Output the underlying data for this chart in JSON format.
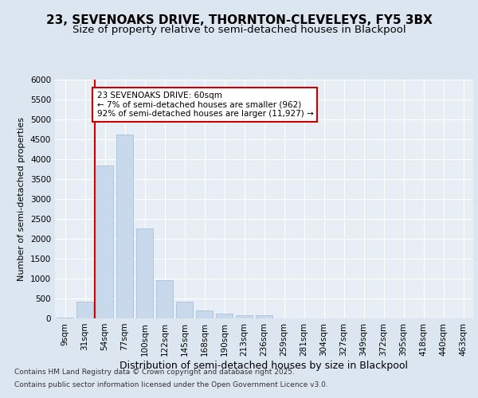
{
  "title": "23, SEVENOAKS DRIVE, THORNTON-CLEVELEYS, FY5 3BX",
  "subtitle": "Size of property relative to semi-detached houses in Blackpool",
  "xlabel": "Distribution of semi-detached houses by size in Blackpool",
  "ylabel": "Number of semi-detached properties",
  "categories": [
    "9sqm",
    "31sqm",
    "54sqm",
    "77sqm",
    "100sqm",
    "122sqm",
    "145sqm",
    "168sqm",
    "190sqm",
    "213sqm",
    "236sqm",
    "259sqm",
    "281sqm",
    "304sqm",
    "327sqm",
    "349sqm",
    "372sqm",
    "395sqm",
    "418sqm",
    "440sqm",
    "463sqm"
  ],
  "values": [
    30,
    430,
    3850,
    4630,
    2270,
    970,
    430,
    195,
    120,
    90,
    80,
    0,
    0,
    0,
    0,
    0,
    0,
    0,
    0,
    0,
    0
  ],
  "bar_color": "#c9d9ec",
  "bar_edge_color": "#a0b8d8",
  "vline_color": "#cc0000",
  "annotation_title": "23 SEVENOAKS DRIVE: 60sqm",
  "annotation_line1": "← 7% of semi-detached houses are smaller (962)",
  "annotation_line2": "92% of semi-detached houses are larger (11,927) →",
  "annotation_box_color": "#cc0000",
  "ylim": [
    0,
    6000
  ],
  "yticks": [
    0,
    500,
    1000,
    1500,
    2000,
    2500,
    3000,
    3500,
    4000,
    4500,
    5000,
    5500,
    6000
  ],
  "background_color": "#dce6f0",
  "plot_bg_color": "#e8eef5",
  "grid_color": "#ffffff",
  "footer_line1": "Contains HM Land Registry data © Crown copyright and database right 2025.",
  "footer_line2": "Contains public sector information licensed under the Open Government Licence v3.0.",
  "title_fontsize": 11,
  "subtitle_fontsize": 9.5,
  "xlabel_fontsize": 9,
  "ylabel_fontsize": 8,
  "tick_fontsize": 7.5,
  "footer_fontsize": 6.5
}
